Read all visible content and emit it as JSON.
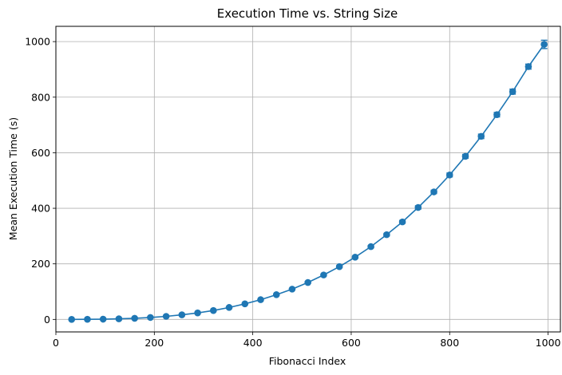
{
  "chart_data": {
    "type": "line",
    "title": "Execution Time vs. String Size",
    "xlabel": "Fibonacci Index",
    "ylabel": "Mean Execution Time (s)",
    "xlim": [
      0,
      1025
    ],
    "ylim": [
      -45,
      1055
    ],
    "xticks": [
      0,
      200,
      400,
      600,
      800,
      1000
    ],
    "yticks": [
      0,
      200,
      400,
      600,
      800,
      1000
    ],
    "grid": true,
    "color": "#1f77b4",
    "series": [
      {
        "x": [
          32,
          64,
          96,
          128,
          160,
          192,
          224,
          256,
          288,
          320,
          352,
          384,
          416,
          448,
          480,
          512,
          544,
          576,
          608,
          640,
          672,
          704,
          736,
          768,
          800,
          832,
          864,
          896,
          928,
          960,
          992
        ],
        "values": [
          0.03,
          0.3,
          0.9,
          2.1,
          4.0,
          7.0,
          11,
          16.5,
          23.5,
          32,
          43,
          56,
          71,
          89,
          109,
          133,
          160,
          190,
          224,
          262,
          305,
          351,
          403,
          459,
          520,
          587,
          659,
          737,
          820,
          910,
          990
        ],
        "errors": [
          0.5,
          0.5,
          0.5,
          0.5,
          0.5,
          0.6,
          0.6,
          0.7,
          0.8,
          1,
          1,
          1.2,
          1.5,
          1.8,
          2,
          2.5,
          3,
          3,
          3.5,
          4,
          4.5,
          5,
          6,
          6,
          7,
          7,
          8,
          8,
          9,
          9,
          15
        ]
      }
    ]
  }
}
